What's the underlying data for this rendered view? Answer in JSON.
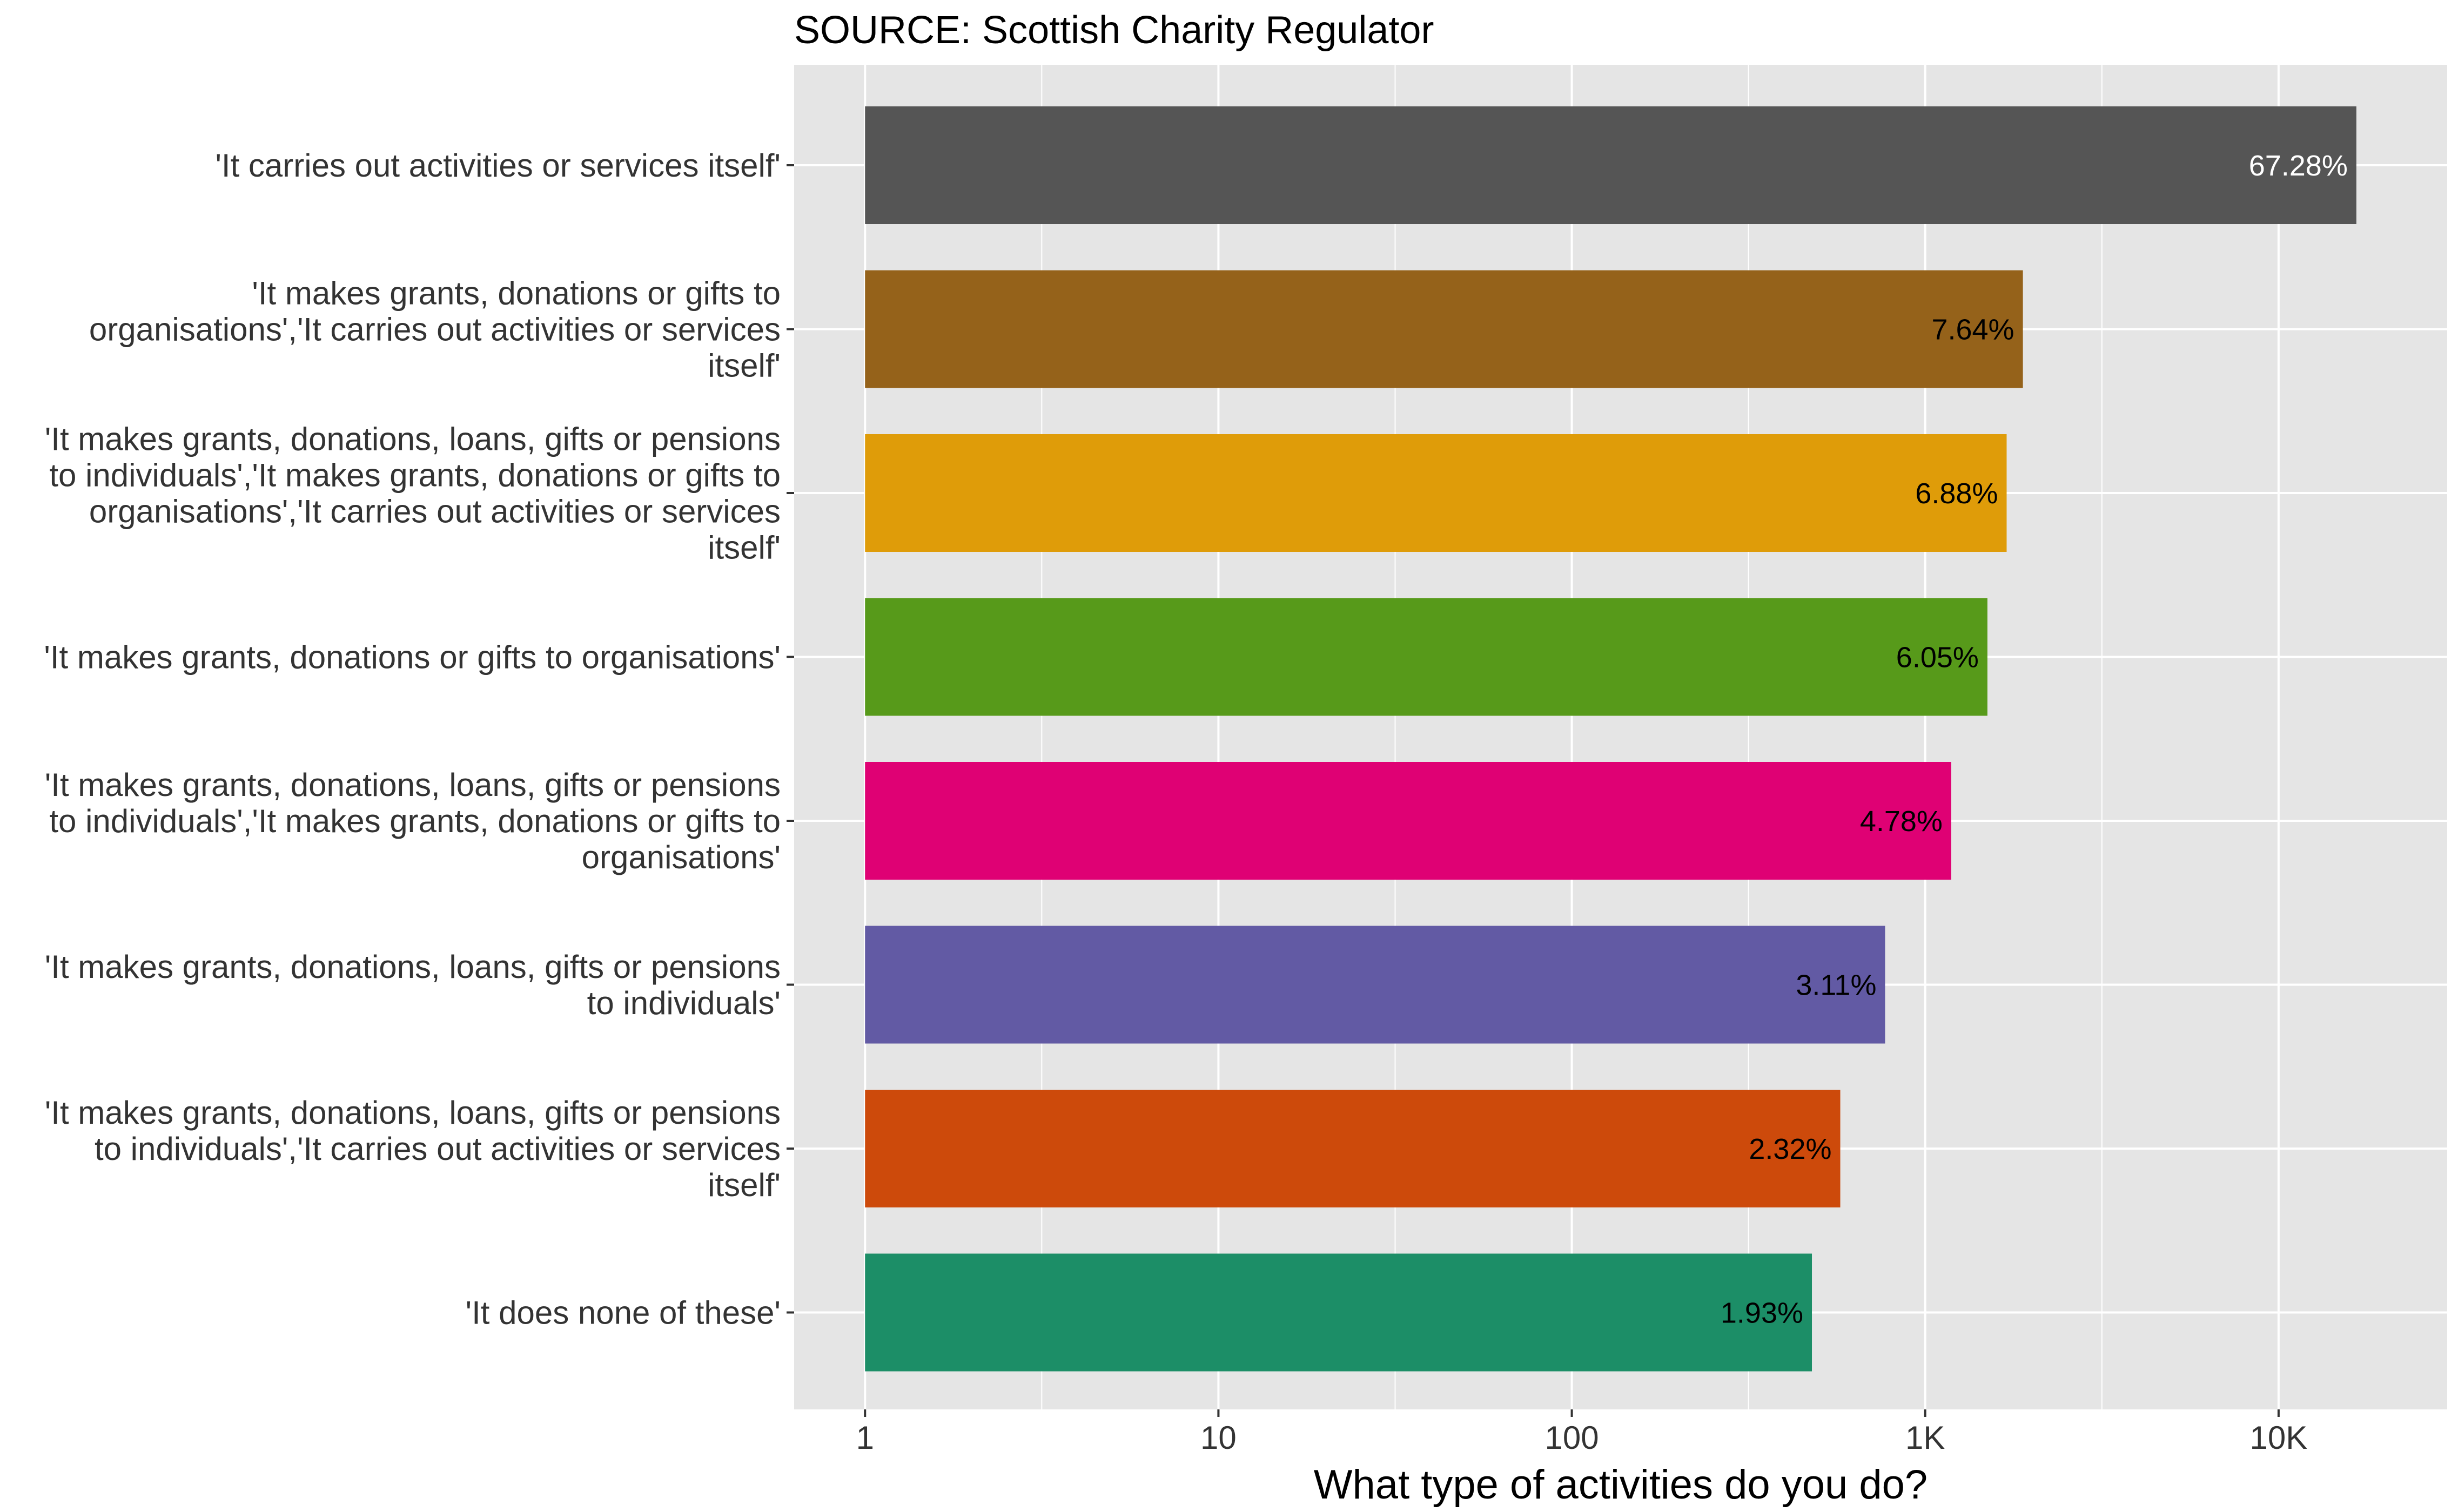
{
  "chart_data": {
    "type": "bar",
    "orientation": "horizontal",
    "title": "SOURCE: Scottish Charity Regulator",
    "xlabel": "What type of activities do you do?",
    "ylabel": "",
    "x_scale": "log10",
    "xlim": [
      0.63,
      30000
    ],
    "x_ticks": [
      1,
      10,
      100,
      1000,
      10000
    ],
    "x_tick_labels": [
      "1",
      "10",
      "100",
      "1K",
      "10K"
    ],
    "grid": true,
    "legend": "none",
    "categories": [
      "'It carries out activities or services itself'",
      "'It makes grants, donations or gifts to organisations','It carries out activities or services itself'",
      "'It makes grants, donations, loans, gifts or pensions to individuals','It makes grants, donations or gifts to organisations','It carries out activities or services itself'",
      "'It makes grants, donations or gifts to organisations'",
      "'It makes grants, donations, loans, gifts or pensions to individuals','It makes grants, donations or gifts to organisations'",
      "'It makes grants, donations, loans, gifts or pensions to individuals'",
      "'It makes grants, donations, loans, gifts or pensions to individuals','It carries out activities or services itself'",
      "'It does none of these'"
    ],
    "category_lines": [
      [
        "'It carries out activities or services itself'"
      ],
      [
        "'It makes grants, donations or gifts to",
        "organisations','It carries out activities or services",
        "itself'"
      ],
      [
        "'It makes grants, donations, loans, gifts or pensions",
        "to individuals','It makes grants, donations or gifts to",
        "organisations','It carries out activities or services",
        "itself'"
      ],
      [
        "'It makes grants, donations or gifts to organisations'"
      ],
      [
        "'It makes grants, donations, loans, gifts or pensions",
        "to individuals','It makes grants, donations or gifts to",
        "organisations'"
      ],
      [
        "'It makes grants, donations, loans, gifts or pensions",
        "to individuals'"
      ],
      [
        "'It makes grants, donations, loans, gifts or pensions",
        "to individuals','It carries out activities or services",
        "itself'"
      ],
      [
        "'It does none of these'"
      ]
    ],
    "values": [
      16600,
      1890,
      1700,
      1500,
      1185,
      770,
      575,
      478
    ],
    "labels": [
      "67.28%",
      "7.64%",
      "6.88%",
      "6.05%",
      "4.78%",
      "3.11%",
      "2.32%",
      "1.93%"
    ],
    "colors": [
      "#555555",
      "#95621A",
      "#DF9C09",
      "#579A1A",
      "#DF0174",
      "#625AA4",
      "#CD4A0B",
      "#1C8E67"
    ],
    "label_colors": [
      "#ffffff",
      "#000000",
      "#000000",
      "#000000",
      "#000000",
      "#000000",
      "#000000",
      "#000000"
    ],
    "panel_background": "#E5E5E5",
    "grid_color": "#ffffff"
  }
}
